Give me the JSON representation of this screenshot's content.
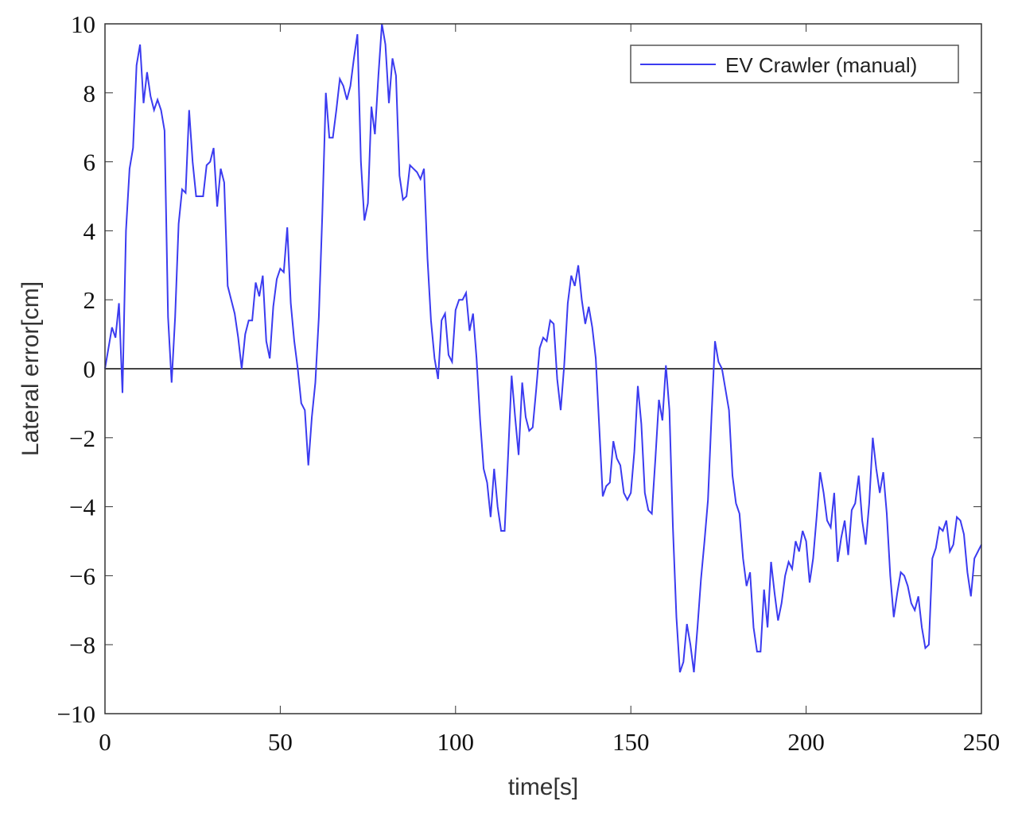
{
  "chart_data": {
    "type": "line",
    "xlabel": "time[s]",
    "ylabel": "Lateral error[cm]",
    "xlim": [
      0,
      250
    ],
    "xticks": [
      0,
      50,
      100,
      150,
      200,
      250
    ],
    "ylim": [
      -10,
      10
    ],
    "yticks": [
      {
        "value": -10,
        "label": "−10"
      },
      {
        "value": -8,
        "label": "−8"
      },
      {
        "value": -6,
        "label": "−6"
      },
      {
        "value": -4,
        "label": "−4"
      },
      {
        "value": -2,
        "label": "−2"
      },
      0,
      2,
      4,
      6,
      8,
      10
    ],
    "zero_line": true,
    "legend": "upper right",
    "x": [
      0,
      1,
      2,
      3,
      4,
      5,
      6,
      7,
      8,
      9,
      10,
      11,
      12,
      13,
      14,
      15,
      16,
      17,
      18,
      19,
      20,
      21,
      22,
      23,
      24,
      25,
      26,
      27,
      28,
      29,
      30,
      31,
      32,
      33,
      34,
      35,
      36,
      37,
      38,
      39,
      40,
      41,
      42,
      43,
      44,
      45,
      46,
      47,
      48,
      49,
      50,
      51,
      52,
      53,
      54,
      55,
      56,
      57,
      58,
      59,
      60,
      61,
      62,
      63,
      64,
      65,
      66,
      67,
      68,
      69,
      70,
      71,
      72,
      73,
      74,
      75,
      76,
      77,
      78,
      79,
      80,
      81,
      82,
      83,
      84,
      85,
      86,
      87,
      88,
      89,
      90,
      91,
      92,
      93,
      94,
      95,
      96,
      97,
      98,
      99,
      100,
      101,
      102,
      103,
      104,
      105,
      106,
      107,
      108,
      109,
      110,
      111,
      112,
      113,
      114,
      115,
      116,
      117,
      118,
      119,
      120,
      121,
      122,
      123,
      124,
      125,
      126,
      127,
      128,
      129,
      130,
      131,
      132,
      133,
      134,
      135,
      136,
      137,
      138,
      139,
      140,
      141,
      142,
      143,
      144,
      145,
      146,
      147,
      148,
      149,
      150,
      151,
      152,
      153,
      154,
      155,
      156,
      157,
      158,
      159,
      160,
      161,
      162,
      163,
      164,
      165,
      166,
      167,
      168,
      169,
      170,
      171,
      172,
      173,
      174,
      175,
      176,
      177,
      178,
      179,
      180,
      181,
      182,
      183,
      184,
      185,
      186,
      187,
      188,
      189,
      190,
      191,
      192,
      193,
      194,
      195,
      196,
      197,
      198,
      199,
      200,
      201,
      202,
      203,
      204,
      205,
      206,
      207,
      208,
      209,
      210,
      211,
      212,
      213,
      214,
      215,
      216,
      217,
      218,
      219,
      220,
      221,
      222,
      223,
      224,
      225,
      226,
      227,
      228,
      229,
      230,
      231,
      232,
      233,
      234,
      235,
      236,
      237,
      238,
      239,
      240,
      241,
      242,
      243,
      244,
      245,
      246,
      247,
      248,
      249,
      250
    ],
    "series": [
      {
        "name": "EV Crawler (manual)",
        "color": "#3b3bf0",
        "values": [
          0,
          0.6,
          1.2,
          0.9,
          1.9,
          -0.7,
          4.0,
          5.8,
          6.4,
          8.8,
          9.4,
          7.7,
          8.6,
          7.9,
          7.5,
          7.8,
          7.5,
          6.9,
          1.5,
          -0.4,
          1.5,
          4.2,
          5.2,
          5.1,
          7.5,
          6.0,
          5.0,
          5.0,
          5.0,
          5.9,
          6.0,
          6.4,
          4.7,
          5.8,
          5.4,
          2.4,
          2.0,
          1.6,
          0.9,
          0.0,
          1.0,
          1.4,
          1.4,
          2.5,
          2.1,
          2.7,
          0.8,
          0.3,
          1.8,
          2.6,
          2.9,
          2.8,
          4.1,
          1.9,
          0.8,
          0.0,
          -1.0,
          -1.2,
          -2.8,
          -1.4,
          -0.4,
          1.5,
          4.5,
          8.0,
          6.7,
          6.7,
          7.5,
          8.4,
          8.2,
          7.8,
          8.2,
          9.0,
          9.7,
          6.0,
          4.3,
          4.8,
          7.6,
          6.8,
          8.5,
          10.0,
          9.4,
          7.7,
          9.0,
          8.5,
          5.6,
          4.9,
          5.0,
          5.9,
          5.8,
          5.7,
          5.5,
          5.8,
          3.2,
          1.4,
          0.3,
          -0.3,
          1.4,
          1.6,
          0.4,
          0.2,
          1.7,
          2.0,
          2.0,
          2.2,
          1.1,
          1.6,
          0.3,
          -1.5,
          -2.9,
          -3.3,
          -4.3,
          -2.9,
          -4.0,
          -4.7,
          -4.7,
          -2.5,
          -0.2,
          -1.4,
          -2.5,
          -0.4,
          -1.4,
          -1.8,
          -1.7,
          -0.6,
          0.6,
          0.9,
          0.8,
          1.4,
          1.3,
          -0.3,
          -1.2,
          0.1,
          1.9,
          2.7,
          2.4,
          3.0,
          2.0,
          1.3,
          1.8,
          1.2,
          0.3,
          -1.7,
          -3.7,
          -3.4,
          -3.3,
          -2.1,
          -2.6,
          -2.8,
          -3.6,
          -3.8,
          -3.6,
          -2.4,
          -0.5,
          -1.6,
          -3.6,
          -4.1,
          -4.2,
          -2.6,
          -0.9,
          -1.5,
          0.1,
          -1.2,
          -4.6,
          -7.2,
          -8.8,
          -8.5,
          -7.4,
          -8.0,
          -8.8,
          -7.5,
          -6.1,
          -5.0,
          -3.8,
          -1.4,
          0.8,
          0.2,
          0.0,
          -0.6,
          -1.2,
          -3.1,
          -3.9,
          -4.2,
          -5.5,
          -6.3,
          -5.9,
          -7.5,
          -8.2,
          -8.2,
          -6.4,
          -7.5,
          -5.6,
          -6.5,
          -7.3,
          -6.8,
          -6.0,
          -5.6,
          -5.8,
          -5.0,
          -5.3,
          -4.7,
          -5.0,
          -6.2,
          -5.5,
          -4.3,
          -3.0,
          -3.6,
          -4.4,
          -4.6,
          -3.6,
          -5.6,
          -4.9,
          -4.4,
          -5.4,
          -4.1,
          -3.9,
          -3.1,
          -4.4,
          -5.1,
          -3.9,
          -2.0,
          -2.9,
          -3.6,
          -3.0,
          -4.2,
          -6.0,
          -7.2,
          -6.5,
          -5.9,
          -6.0,
          -6.3,
          -6.8,
          -7.0,
          -6.6,
          -7.5,
          -8.1,
          -8.0,
          -5.5,
          -5.2,
          -4.6,
          -4.7,
          -4.4,
          -5.3,
          -5.1,
          -4.3,
          -4.4,
          -4.8,
          -5.9,
          -6.6,
          -5.5,
          -5.3,
          -5.1
        ]
      }
    ]
  }
}
